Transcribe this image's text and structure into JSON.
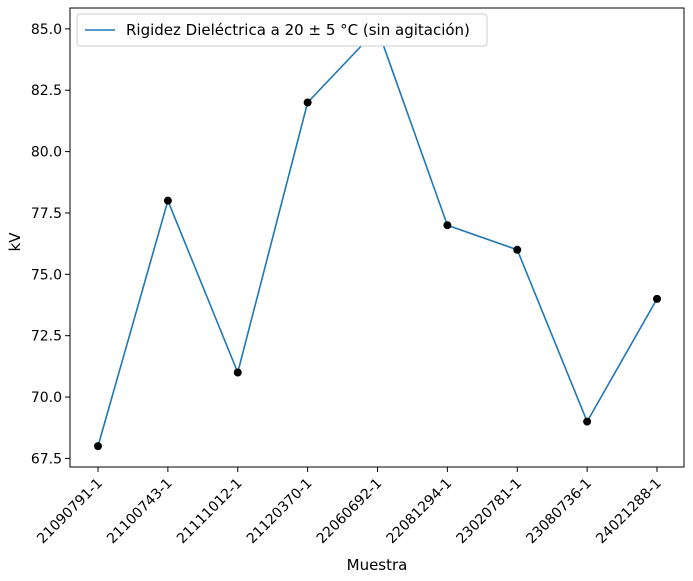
{
  "chart_data": {
    "type": "line",
    "categories": [
      "21090791-1",
      "21100743-1",
      "21111012-1",
      "21120370-1",
      "22060692-1",
      "22081294-1",
      "23020781-1",
      "23080736-1",
      "24021288-1"
    ],
    "series": [
      {
        "name": "Rigidez Dieléctrica a 20 ± 5 °C (sin agitación)",
        "values": [
          68,
          78,
          71,
          82,
          85,
          77,
          76,
          69,
          74
        ],
        "color": "#1f77b4",
        "marker_color": "#000000"
      }
    ],
    "xlabel": "Muestra",
    "ylabel": "kV",
    "ylim": [
      67.15,
      85.85
    ],
    "yticks": [
      67.5,
      70.0,
      72.5,
      75.0,
      77.5,
      80.0,
      82.5,
      85.0
    ],
    "grid": false,
    "legend_position": "top-left"
  }
}
